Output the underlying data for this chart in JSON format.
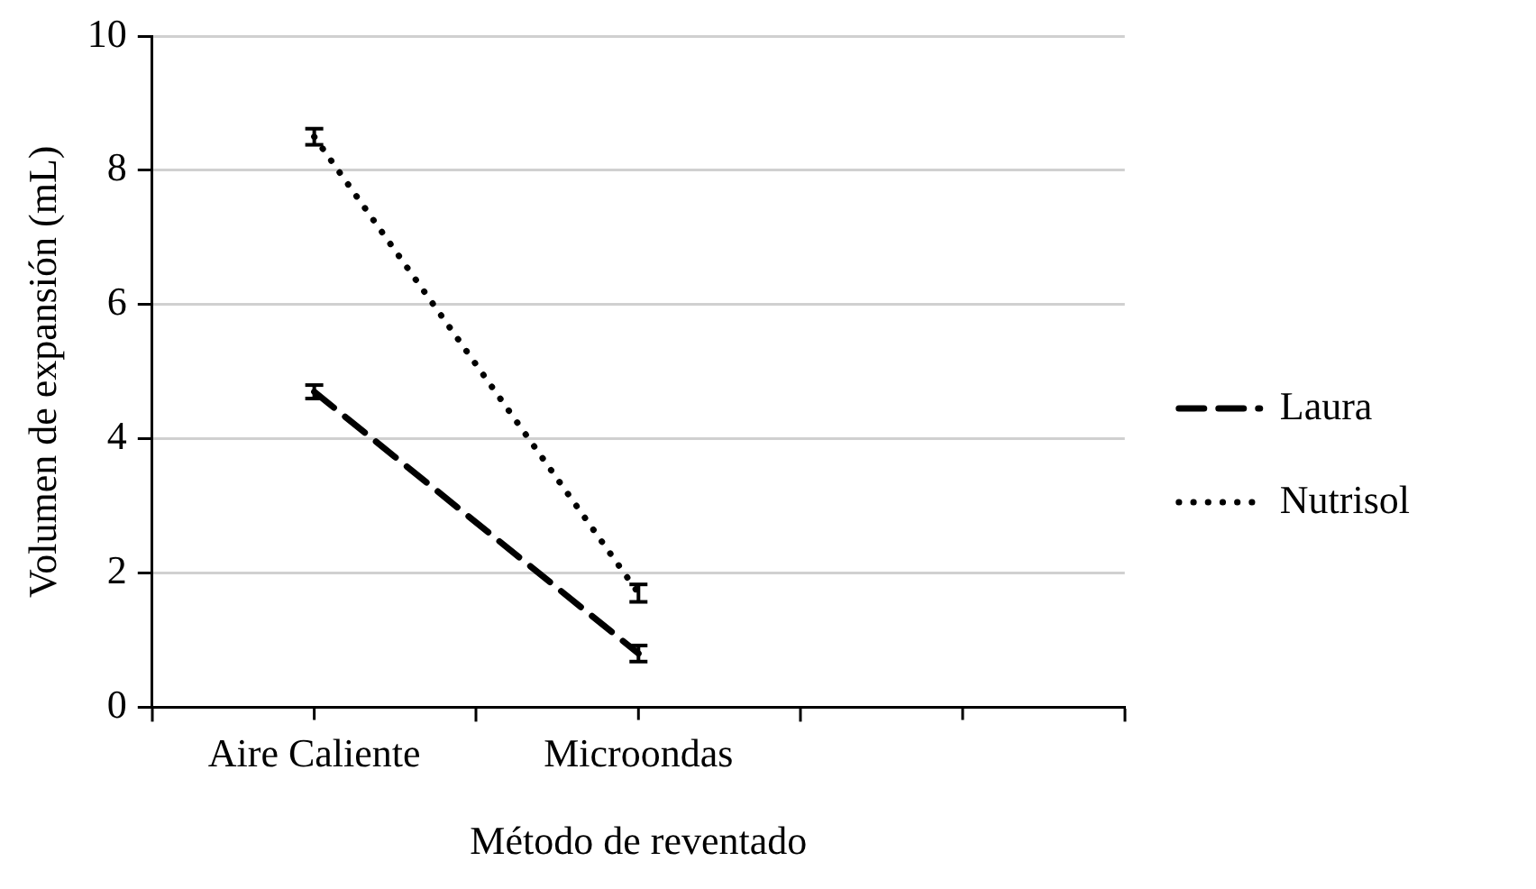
{
  "chart_data": {
    "type": "line",
    "xlabel": "Método de reventado",
    "ylabel": "Volumen de expansión (mL)",
    "categories": [
      "Aire Caliente",
      "Microondas",
      null
    ],
    "series": [
      {
        "name": "Laura",
        "color": "#000000",
        "line_style": "dashed",
        "values": [
          4.7,
          0.8,
          null
        ],
        "errors": [
          0.1,
          0.12,
          null
        ]
      },
      {
        "name": "Nutrisol",
        "color": "#000000",
        "line_style": "dotted",
        "values": [
          8.5,
          1.7,
          null
        ],
        "errors": [
          0.12,
          0.13,
          null
        ]
      }
    ],
    "ylim": [
      0,
      10
    ],
    "yticks": [
      0,
      2,
      4,
      6,
      8,
      10
    ],
    "grid": "y",
    "legend": "right",
    "marker": "none"
  }
}
